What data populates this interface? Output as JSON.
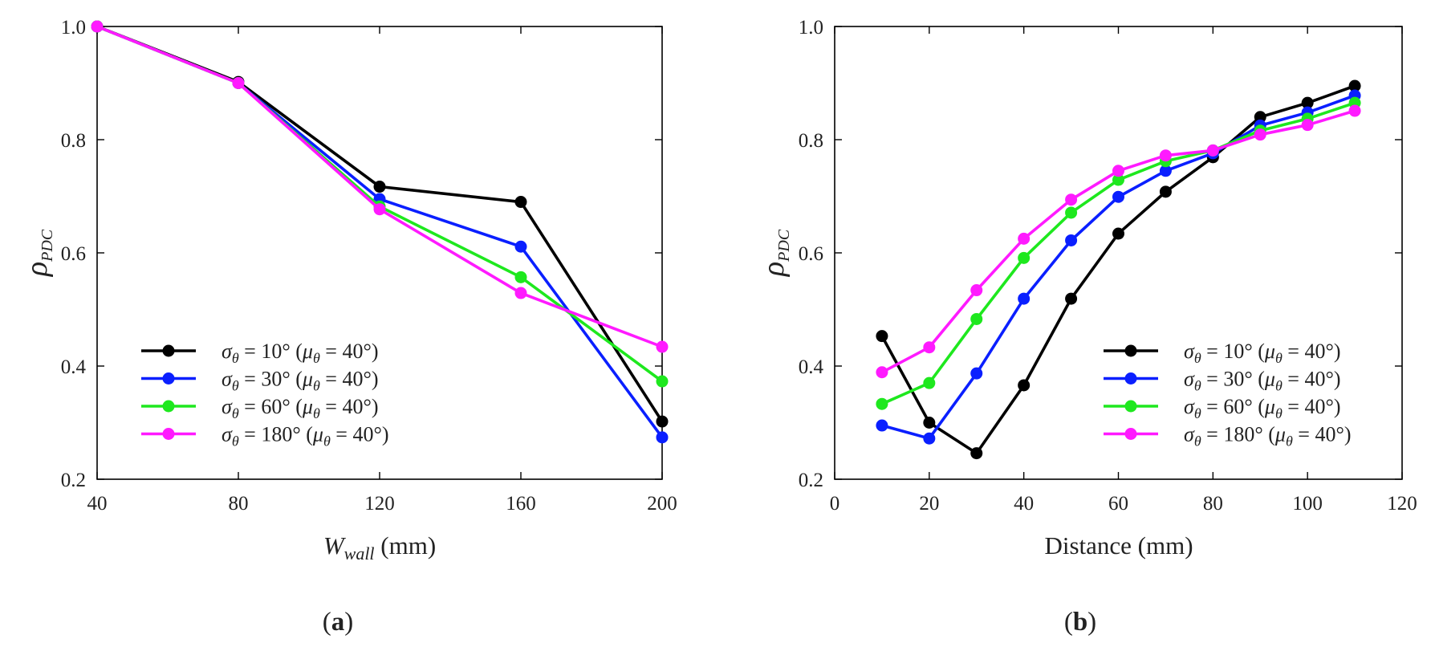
{
  "colors": {
    "black": "#000000",
    "blue": "#0a1fff",
    "green": "#1ee81e",
    "magenta": "#ff1aff"
  },
  "chart_data": [
    {
      "type": "line",
      "panel": "a",
      "panel_label": {
        "open": "(",
        "letter": "a",
        "close": ")"
      },
      "title": "",
      "xlabel": {
        "main": "W",
        "sub": "wall",
        "unit": " (mm)"
      },
      "ylabel": {
        "main": "ρ",
        "sub": "PDC"
      },
      "xlim": [
        40,
        200
      ],
      "ylim": [
        0.2,
        1.0
      ],
      "x_ticks": [
        40,
        80,
        120,
        160,
        200
      ],
      "x_tick_labels": [
        "40",
        "80",
        "120",
        "160",
        "200"
      ],
      "y_ticks": [
        0.2,
        0.4,
        0.6,
        0.8,
        1.0
      ],
      "y_tick_labels": [
        "0.2",
        "0.4",
        "0.6",
        "0.8",
        "1.0"
      ],
      "grid": false,
      "legend_position": "bottom-left",
      "x": [
        40,
        80,
        120,
        160,
        200
      ],
      "series": [
        {
          "name": "σθ = 10° (μθ = 40°)",
          "label": {
            "sym": "σ",
            "sub": "θ",
            "mid": " = 10° (",
            "sym2": "μ",
            "sub2": "θ",
            "end": " = 40°)"
          },
          "color": "#000000",
          "values": [
            1.0,
            0.902,
            0.717,
            0.69,
            0.302
          ]
        },
        {
          "name": "σθ = 30° (μθ = 40°)",
          "label": {
            "sym": "σ",
            "sub": "θ",
            "mid": " = 30° (",
            "sym2": "μ",
            "sub2": "θ",
            "end": " = 40°)"
          },
          "color": "#0a1fff",
          "values": [
            1.0,
            0.9,
            0.695,
            0.611,
            0.274
          ]
        },
        {
          "name": "σθ = 60° (μθ = 40°)",
          "label": {
            "sym": "σ",
            "sub": "θ",
            "mid": " = 60° (",
            "sym2": "μ",
            "sub2": "θ",
            "end": " = 40°)"
          },
          "color": "#1ee81e",
          "values": [
            1.0,
            0.9,
            0.682,
            0.557,
            0.373
          ]
        },
        {
          "name": "σθ = 180° (μθ = 40°)",
          "label": {
            "sym": "σ",
            "sub": "θ",
            "mid": " = 180° (",
            "sym2": "μ",
            "sub2": "θ",
            "end": " = 40°)"
          },
          "color": "#ff1aff",
          "values": [
            1.0,
            0.9,
            0.677,
            0.529,
            0.434
          ]
        }
      ]
    },
    {
      "type": "line",
      "panel": "b",
      "panel_label": {
        "open": "(",
        "letter": "b",
        "close": ")"
      },
      "title": "",
      "xlabel": {
        "main": "Distance",
        "sub": "",
        "unit": " (mm)"
      },
      "ylabel": {
        "main": "ρ",
        "sub": "PDC"
      },
      "xlim": [
        0,
        120
      ],
      "ylim": [
        0.2,
        1.0
      ],
      "x_ticks": [
        0,
        20,
        40,
        60,
        80,
        100,
        120
      ],
      "x_tick_labels": [
        "0",
        "20",
        "40",
        "60",
        "80",
        "100",
        "120"
      ],
      "y_ticks": [
        0.2,
        0.4,
        0.6,
        0.8,
        1.0
      ],
      "y_tick_labels": [
        "0.2",
        "0.4",
        "0.6",
        "0.8",
        "1.0"
      ],
      "grid": false,
      "legend_position": "bottom-right",
      "x": [
        10,
        20,
        30,
        40,
        50,
        60,
        70,
        80,
        90,
        100,
        110
      ],
      "series": [
        {
          "name": "σθ = 10° (μθ = 40°)",
          "label": {
            "sym": "σ",
            "sub": "θ",
            "mid": " = 10° (",
            "sym2": "μ",
            "sub2": "θ",
            "end": " = 40°)"
          },
          "color": "#000000",
          "values": [
            0.453,
            0.3,
            0.246,
            0.366,
            0.519,
            0.634,
            0.708,
            0.769,
            0.84,
            0.865,
            0.895
          ]
        },
        {
          "name": "σθ = 30° (μθ = 40°)",
          "label": {
            "sym": "σ",
            "sub": "θ",
            "mid": " = 30° (",
            "sym2": "μ",
            "sub2": "θ",
            "end": " = 40°)"
          },
          "color": "#0a1fff",
          "values": [
            0.295,
            0.272,
            0.387,
            0.519,
            0.622,
            0.699,
            0.745,
            0.776,
            0.825,
            0.848,
            0.878
          ]
        },
        {
          "name": "σθ = 60° (μθ = 40°)",
          "label": {
            "sym": "σ",
            "sub": "θ",
            "mid": " = 60° (",
            "sym2": "μ",
            "sub2": "θ",
            "end": " = 40°)"
          },
          "color": "#1ee81e",
          "values": [
            0.333,
            0.37,
            0.483,
            0.591,
            0.671,
            0.729,
            0.762,
            0.781,
            0.816,
            0.837,
            0.865
          ]
        },
        {
          "name": "σθ = 180° (μθ = 40°)",
          "label": {
            "sym": "σ",
            "sub": "θ",
            "mid": " = 180° (",
            "sym2": "μ",
            "sub2": "θ",
            "end": " = 40°)"
          },
          "color": "#ff1aff",
          "values": [
            0.389,
            0.433,
            0.534,
            0.625,
            0.694,
            0.745,
            0.772,
            0.781,
            0.809,
            0.826,
            0.851
          ]
        }
      ]
    }
  ]
}
